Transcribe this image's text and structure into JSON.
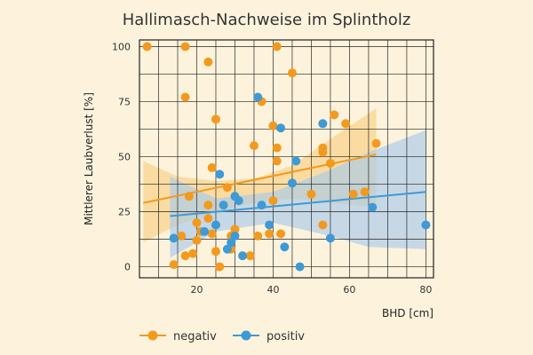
{
  "chart_data": {
    "type": "scatter",
    "title": "Hallimasch-Nachweise im Splintholz",
    "xlabel": "BHD [cm]",
    "ylabel": "Mittlerer Laubverlust [%]",
    "xlim": [
      5,
      82
    ],
    "ylim": [
      -5,
      103
    ],
    "xticks": [
      20,
      40,
      60,
      80
    ],
    "yticks": [
      0,
      25,
      50,
      75,
      100
    ],
    "grid": true,
    "legend_position": "bottom-left",
    "series": [
      {
        "name": "negativ",
        "color": "#f39a1e",
        "band_color": "#f9cf83",
        "trend": {
          "x": [
            6,
            67
          ],
          "y": [
            29,
            51
          ]
        },
        "band": {
          "x": [
            6,
            15,
            25,
            35,
            45,
            55,
            67
          ],
          "lower": [
            11,
            19,
            25,
            29,
            31,
            29,
            27
          ],
          "upper": [
            48,
            41,
            39,
            40,
            46,
            58,
            72
          ]
        },
        "points": [
          [
            7,
            100
          ],
          [
            17,
            100
          ],
          [
            23,
            93
          ],
          [
            41,
            100
          ],
          [
            17,
            77
          ],
          [
            45,
            88
          ],
          [
            25,
            67
          ],
          [
            37,
            75
          ],
          [
            56,
            69
          ],
          [
            59,
            65
          ],
          [
            40,
            64
          ],
          [
            35,
            55
          ],
          [
            41,
            54
          ],
          [
            53,
            54
          ],
          [
            53,
            52
          ],
          [
            67,
            56
          ],
          [
            24,
            45
          ],
          [
            41,
            48
          ],
          [
            55,
            47
          ],
          [
            28,
            36
          ],
          [
            18,
            32
          ],
          [
            50,
            33
          ],
          [
            61,
            33
          ],
          [
            64,
            34
          ],
          [
            40,
            30
          ],
          [
            23,
            28
          ],
          [
            16,
            14
          ],
          [
            23,
            22
          ],
          [
            20,
            20
          ],
          [
            21,
            16
          ],
          [
            20,
            12
          ],
          [
            29,
            14
          ],
          [
            30,
            17
          ],
          [
            39,
            15
          ],
          [
            36,
            14
          ],
          [
            24,
            15
          ],
          [
            17,
            5
          ],
          [
            25,
            7
          ],
          [
            19,
            6
          ],
          [
            34,
            5
          ],
          [
            29,
            8
          ],
          [
            14,
            1
          ],
          [
            26,
            0
          ],
          [
            53,
            19
          ],
          [
            42,
            15
          ]
        ]
      },
      {
        "name": "positiv",
        "color": "#3d9ad6",
        "band_color": "#a9c9ea",
        "trend": {
          "x": [
            13,
            80
          ],
          "y": [
            23,
            34
          ]
        },
        "band": {
          "x": [
            13,
            25,
            40,
            55,
            65,
            80
          ],
          "lower": [
            4,
            16,
            20,
            14,
            9,
            8
          ],
          "upper": [
            41,
            31,
            34,
            44,
            52,
            62
          ]
        },
        "points": [
          [
            36,
            77
          ],
          [
            53,
            65
          ],
          [
            42,
            63
          ],
          [
            46,
            48
          ],
          [
            26,
            42
          ],
          [
            45,
            38
          ],
          [
            30,
            32
          ],
          [
            31,
            30
          ],
          [
            27,
            28
          ],
          [
            37,
            28
          ],
          [
            66,
            27
          ],
          [
            22,
            16
          ],
          [
            25,
            19
          ],
          [
            30,
            14
          ],
          [
            39,
            19
          ],
          [
            80,
            19
          ],
          [
            14,
            13
          ],
          [
            55,
            13
          ],
          [
            29,
            11
          ],
          [
            43,
            9
          ],
          [
            28,
            8
          ],
          [
            32,
            5
          ],
          [
            47,
            0
          ]
        ]
      }
    ]
  }
}
